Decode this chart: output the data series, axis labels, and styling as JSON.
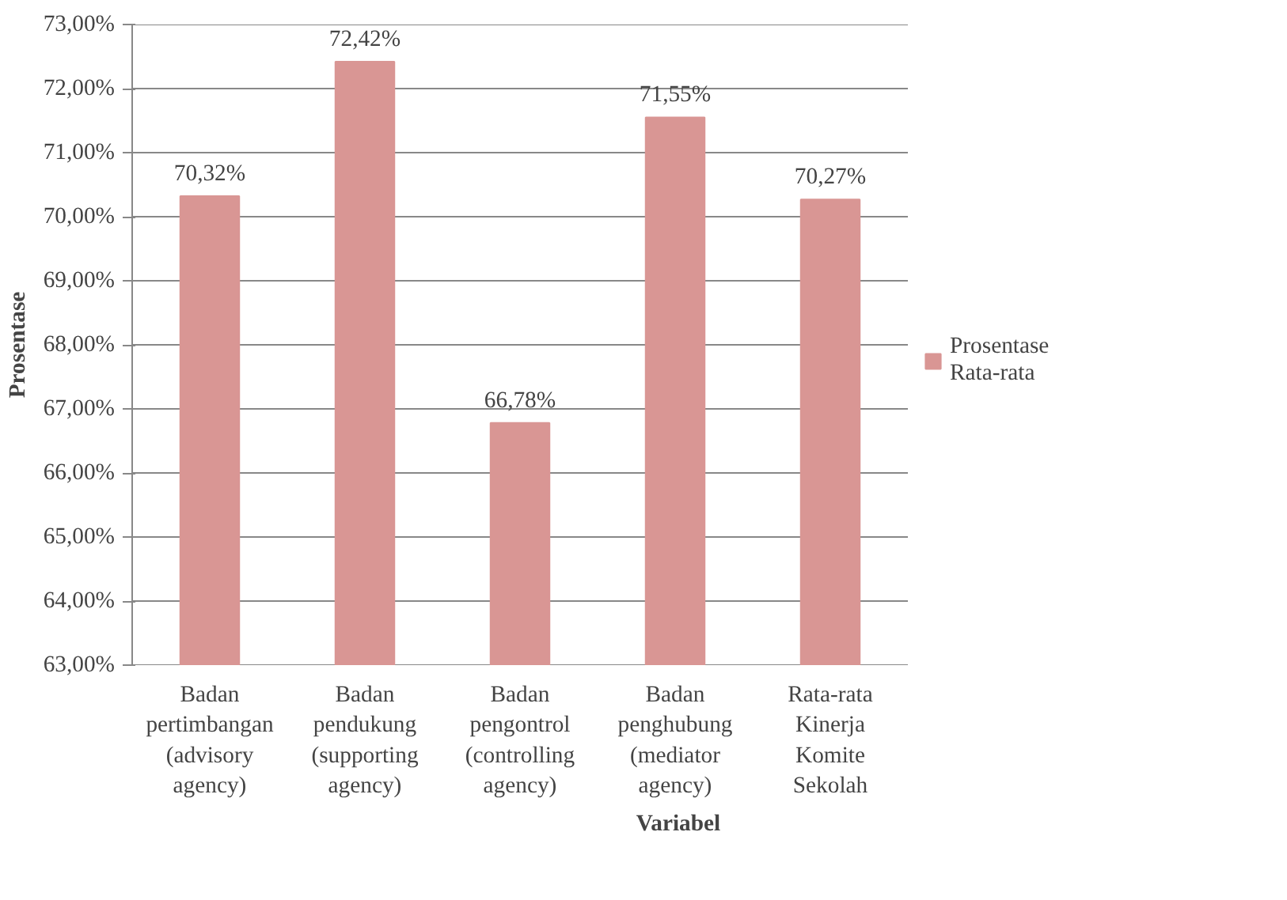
{
  "chart_data": {
    "type": "bar",
    "xlabel": "Variabel",
    "ylabel": "Prosentase",
    "categories": [
      "Badan\npertimbangan\n(advisory\nagency)",
      "Badan\npendukung\n(supporting\nagency)",
      "Badan\npengontrol\n(controlling\nagency)",
      "Badan\npenghubung\n(mediator\nagency)",
      "Rata-rata\nKinerja\nKomite\nSekolah"
    ],
    "series": [
      {
        "name": "Prosentase\nRata-rata",
        "color": "#d99694",
        "values": [
          70.32,
          72.42,
          66.78,
          71.55,
          70.27
        ]
      }
    ],
    "value_labels": [
      "70,32%",
      "72,42%",
      "66,78%",
      "71,55%",
      "70,27%"
    ],
    "ylim": [
      63,
      73
    ],
    "yticks": [
      {
        "value": 63,
        "label": "63,00%"
      },
      {
        "value": 64,
        "label": "64,00%"
      },
      {
        "value": 65,
        "label": "65,00%"
      },
      {
        "value": 66,
        "label": "66,00%"
      },
      {
        "value": 67,
        "label": "67,00%"
      },
      {
        "value": 68,
        "label": "68,00%"
      },
      {
        "value": 69,
        "label": "69,00%"
      },
      {
        "value": 70,
        "label": "70,00%"
      },
      {
        "value": 71,
        "label": "71,00%"
      },
      {
        "value": 72,
        "label": "72,00%"
      },
      {
        "value": 73,
        "label": "73,00%"
      }
    ],
    "grid": "y",
    "legend": "right"
  }
}
